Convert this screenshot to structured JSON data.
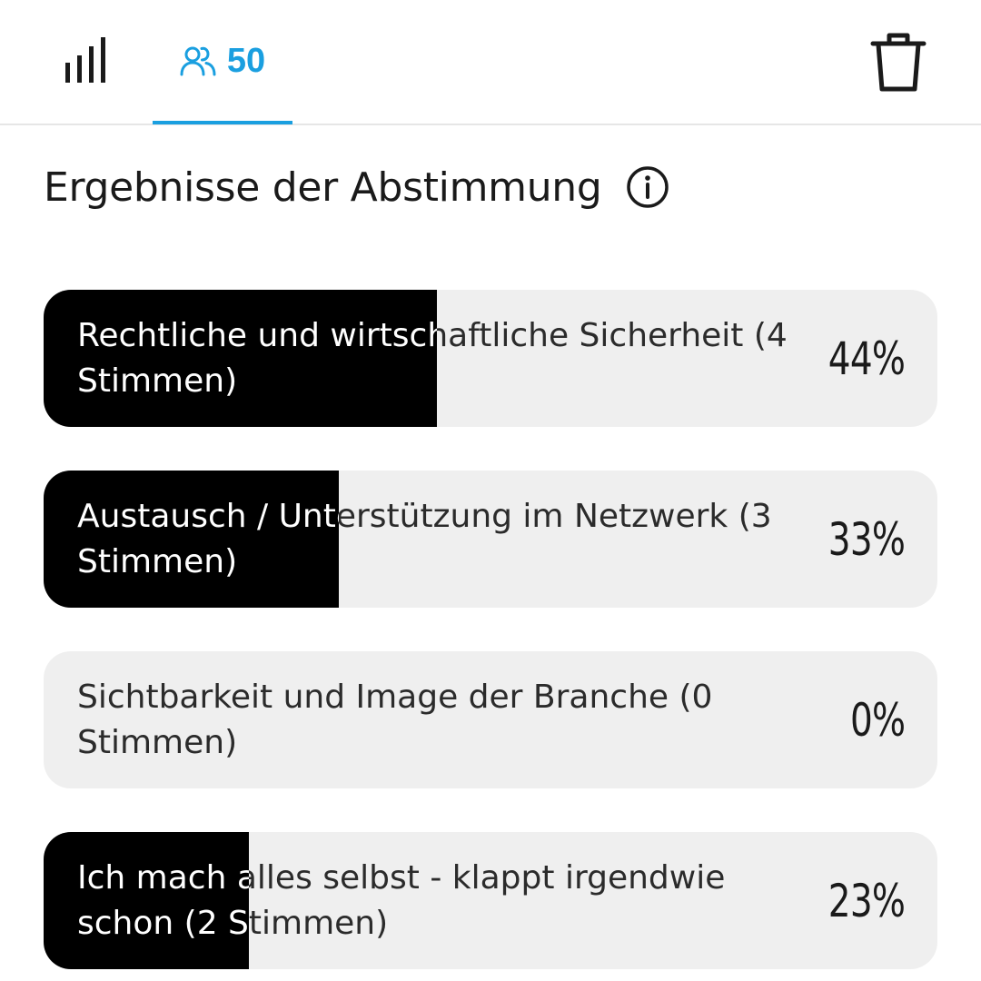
{
  "header": {
    "stats_tab_icon": "bar-chart-icon",
    "participants_icon": "users-icon",
    "participants_count": "50",
    "delete_icon": "trash-icon",
    "accent_color": "#1a9fe0"
  },
  "poll": {
    "title": "Ergebnisse der Abstimmung",
    "info_icon": "info-icon",
    "options": [
      {
        "label": "Rechtliche und wirtschaftliche Sicherheit (4 Stimmen)",
        "percent_text": "44%",
        "fraction": 0.44
      },
      {
        "label": "Austausch / Unterstützung im Netzwerk (3 Stimmen)",
        "percent_text": "33%",
        "fraction": 0.33
      },
      {
        "label": "Sichtbarkeit und Image der Branche (0 Stimmen)",
        "percent_text": "0%",
        "fraction": 0
      },
      {
        "label": "Ich mach alles selbst - klappt irgendwie schon (2 Stimmen)",
        "percent_text": "23%",
        "fraction": 0.23
      }
    ]
  }
}
